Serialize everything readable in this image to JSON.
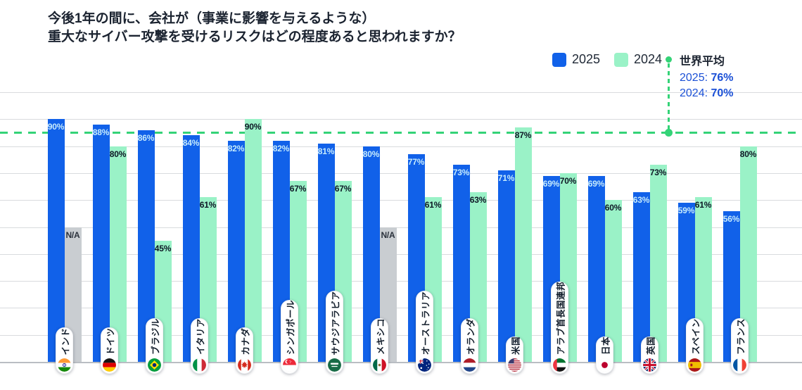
{
  "title": {
    "line1": "今後1年の間に、会社が（事業に影響を与えるような）",
    "line2": "重大なサイバー攻撃を受けるリスクはどの程度あると思われますか？"
  },
  "legend": {
    "label_2025": "2025",
    "label_2024": "2024",
    "world_average_title": "世界平均",
    "world_average_rows": [
      {
        "label": "2025:",
        "value": "76%"
      },
      {
        "label": "2024:",
        "value": "70%"
      }
    ]
  },
  "colors": {
    "bar_2025": "#1161e9",
    "bar_2024": "#9af2c7",
    "bar_na": "#c9cdd1",
    "average_line": "#34d377",
    "accent_text": "#1b50d6",
    "title_text": "#1b2330"
  },
  "chart_data": {
    "type": "bar",
    "categories": [
      "インド",
      "ドイツ",
      "ブラジル",
      "イタリア",
      "カナダ",
      "シンガポール",
      "サウジアラビア",
      "メキシコ",
      "オーストラリア",
      "オランダ",
      "米国",
      "アラブ首長国連邦",
      "日本",
      "英国",
      "スペイン",
      "フランス"
    ],
    "series": [
      {
        "name": "2025",
        "values": [
          90,
          88,
          86,
          84,
          82,
          82,
          81,
          80,
          77,
          73,
          71,
          69,
          69,
          63,
          59,
          56
        ]
      },
      {
        "name": "2024",
        "values": [
          null,
          80,
          45,
          61,
          90,
          67,
          67,
          null,
          61,
          63,
          87,
          70,
          60,
          73,
          61,
          80
        ]
      }
    ],
    "na_label": "N/A",
    "unit": "%",
    "ylim": [
      0,
      100
    ],
    "gridline_step": 10,
    "grid": true,
    "legend_position": "top-right",
    "average_line_y_percent": 85,
    "na_bar_height_percent": 50,
    "flags": [
      "india",
      "germany",
      "brazil",
      "italy",
      "canada",
      "singapore",
      "saudi-arabia",
      "mexico",
      "australia",
      "netherlands",
      "usa",
      "uae",
      "japan",
      "uk",
      "spain",
      "france"
    ]
  }
}
